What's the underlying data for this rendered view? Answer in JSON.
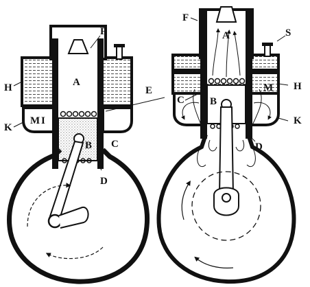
{
  "figure": {
    "left": {
      "labels": {
        "A": "A",
        "B": "B",
        "C": "C",
        "D": "D",
        "F": "F",
        "H": "H",
        "K": "K",
        "M": "M"
      },
      "stroke_index": "I"
    },
    "right": {
      "labels": {
        "A": "A",
        "B": "B",
        "C": "C",
        "D": "D",
        "F": "F",
        "H": "H",
        "K": "K",
        "M": "M",
        "S": "S"
      }
    },
    "shared_label_E": "E",
    "ink_color": "#111111",
    "hatch_color": "#555555"
  }
}
